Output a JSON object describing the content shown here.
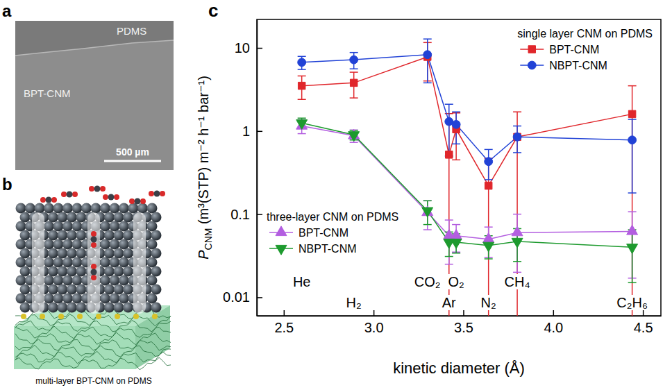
{
  "panels": {
    "a": {
      "letter": "a",
      "labels": [
        "PDMS",
        "BPT-CNM"
      ],
      "scale_bar": "500 µm"
    },
    "b": {
      "letter": "b",
      "caption": "multi-layer BPT-CNM on PDMS"
    }
  },
  "chart_data": {
    "letter": "c",
    "type": "line",
    "x_label": "kinetic diameter (Å)",
    "y_label": [
      "P",
      "CNM",
      " (m³(STP) m⁻² h⁻¹ bar⁻¹)"
    ],
    "x": [
      2.6,
      2.89,
      3.3,
      3.42,
      3.46,
      3.64,
      3.8,
      4.44
    ],
    "xlim": [
      2.35,
      4.6
    ],
    "xticks": [
      2.5,
      {
        "value": 3,
        "label": "3.0"
      },
      3.5,
      {
        "value": 4,
        "label": "4.0"
      },
      4.5
    ],
    "ylim": [
      0.006,
      22
    ],
    "yticks": [
      0.01,
      0.1,
      1,
      10
    ],
    "log": "y",
    "grid": false,
    "annotations": [
      {
        "text": "He",
        "x": 2.6
      },
      {
        "text": "H₂",
        "x": 2.89
      },
      {
        "text": "CO₂",
        "x": 3.3
      },
      {
        "text": "Ar",
        "x": 3.42
      },
      {
        "text": "O₂",
        "x": 3.46
      },
      {
        "text": "N₂",
        "x": 3.64
      },
      {
        "text": "CH₄",
        "x": 3.8
      },
      {
        "text": "C₂H₆",
        "x": 4.44
      }
    ],
    "series": [
      {
        "name": "BPT-CNM",
        "group": "single layer CNM on PDMS",
        "color": "#e0262b",
        "marker": "square",
        "line_style": "solid",
        "values": [
          3.5,
          3.8,
          7.8,
          0.52,
          1.05,
          0.22,
          0.85,
          1.6
        ],
        "errors": [
          1.1,
          1.3,
          3.8,
          1.1,
          0.6,
          0.25,
          0.85,
          1.9
        ]
      },
      {
        "name": "NBPT-CNM",
        "group": "single layer CNM on PDMS",
        "color": "#2142d6",
        "marker": "circle",
        "line_style": "solid",
        "values": [
          6.7,
          7.2,
          8.3,
          1.3,
          1.2,
          0.43,
          0.85,
          0.78
        ],
        "errors": [
          1.2,
          1.6,
          4.5,
          0.8,
          0.5,
          0.17,
          0.3,
          0.6
        ]
      },
      {
        "name": "BPT-CNM",
        "group": "three-layer CNM on PDMS",
        "color": "#b35ee0",
        "marker": "triangle-up",
        "line_style": "solid",
        "values": [
          1.15,
          0.88,
          0.105,
          0.055,
          0.055,
          0.05,
          0.06,
          0.062
        ],
        "errors": [
          0.22,
          0.15,
          0.04,
          0.03,
          0.02,
          0.02,
          0.04,
          0.045
        ]
      },
      {
        "name": "NBPT-CNM",
        "group": "three-layer CNM on PDMS",
        "color": "#1d9a2e",
        "marker": "triangle-down",
        "line_style": "solid",
        "values": [
          1.25,
          0.9,
          0.11,
          0.046,
          0.046,
          0.042,
          0.047,
          0.04
        ],
        "errors": [
          0.18,
          0.12,
          0.035,
          0.015,
          0.012,
          0.013,
          0.02,
          0.025
        ]
      }
    ]
  }
}
